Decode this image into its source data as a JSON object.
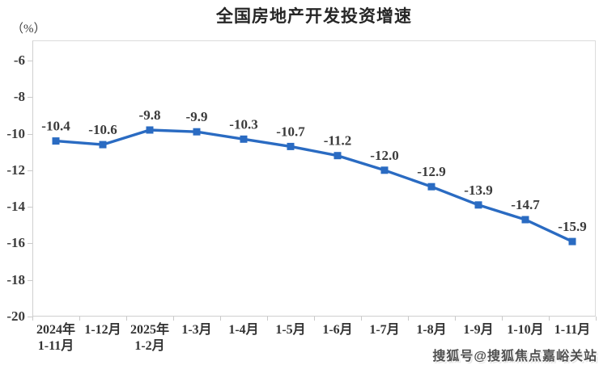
{
  "chart_data": {
    "type": "line",
    "title": "全国房地产开发投资增速",
    "ylabel": "（%）",
    "xlabel": "",
    "categories": [
      [
        "2024年",
        "1-11月"
      ],
      [
        "1-12月"
      ],
      [
        "2025年",
        "1-2月"
      ],
      [
        "1-3月"
      ],
      [
        "1-4月"
      ],
      [
        "1-5月"
      ],
      [
        "1-6月"
      ],
      [
        "1-7月"
      ],
      [
        "1-8月"
      ],
      [
        "1-9月"
      ],
      [
        "1-10月"
      ],
      [
        "1-11月"
      ]
    ],
    "values": [
      -10.4,
      -10.6,
      -9.8,
      -9.9,
      -10.3,
      -10.7,
      -11.2,
      -12.0,
      -12.9,
      -13.9,
      -14.7,
      -15.9
    ],
    "data_labels": [
      "-10.4",
      "-10.6",
      "-9.8",
      "-9.9",
      "-10.3",
      "-10.7",
      "-11.2",
      "-12.0",
      "-12.9",
      "-13.9",
      "-14.7",
      "-15.9"
    ],
    "yticks": [
      -6,
      -8,
      -10,
      -12,
      -14,
      -16,
      -18,
      -20
    ],
    "ylim": [
      -20,
      -4.9
    ],
    "grid": false,
    "legend_position": "none",
    "line_color": "#2a6bc2",
    "marker": "square",
    "label_color": "#3a3a3a",
    "axis_color": "#cfcfcf"
  },
  "watermark": {
    "text": "搜狐号@搜狐焦点嘉峪关站"
  }
}
